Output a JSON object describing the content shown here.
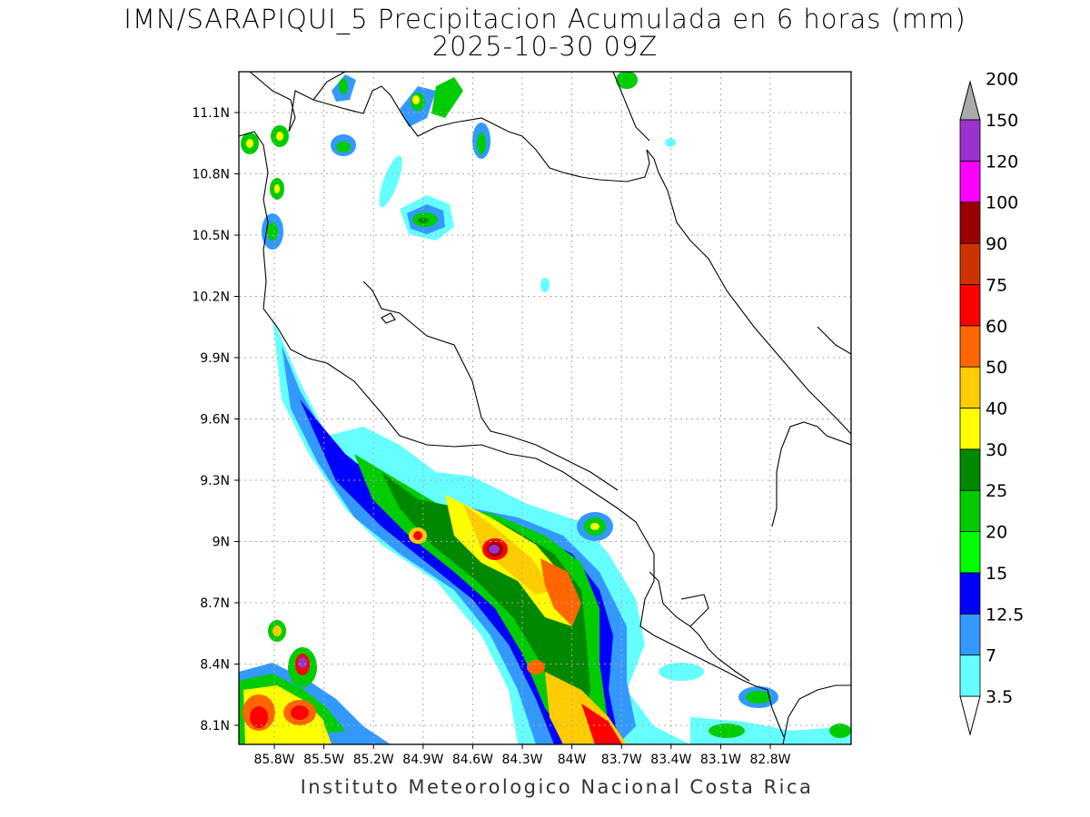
{
  "title_line1": "IMN/SARAPIQUI_5 Precipitacion Acumulada en 6 horas (mm)",
  "title_line2": "2025-10-30 09Z",
  "footer": "Instituto Meteorologico Nacional Costa Rica",
  "map": {
    "lon_range": [
      -86.0,
      -83.0
    ],
    "lat_range": [
      8.0,
      11.3
    ],
    "grid": "dotted",
    "lat_ticks": [
      "11.1N",
      "10.8N",
      "10.5N",
      "10.2N",
      "9.9N",
      "9.6N",
      "9.3N",
      "9N",
      "8.7N",
      "8.4N",
      "8.1N"
    ],
    "lon_ticks": [
      "85.8W",
      "85.5W",
      "85.2W",
      "84.9W",
      "84.6W",
      "84.3W",
      "84W",
      "83.7W",
      "83.4W",
      "83.1W",
      "82.8W"
    ]
  },
  "colorbar": {
    "labels": [
      "3.5",
      "7",
      "12.5",
      "15",
      "20",
      "25",
      "30",
      "40",
      "50",
      "60",
      "75",
      "90",
      "100",
      "120",
      "150",
      "200"
    ],
    "colors": [
      "#66ffff",
      "#3399ff",
      "#0000ff",
      "#00ff00",
      "#00cc00",
      "#008800",
      "#ffff00",
      "#ffcc00",
      "#ff6600",
      "#ff0000",
      "#cc3300",
      "#990000",
      "#ff00ff",
      "#9933cc",
      "#f2f2f2",
      "#aaaaaa"
    ],
    "extend": "both"
  }
}
